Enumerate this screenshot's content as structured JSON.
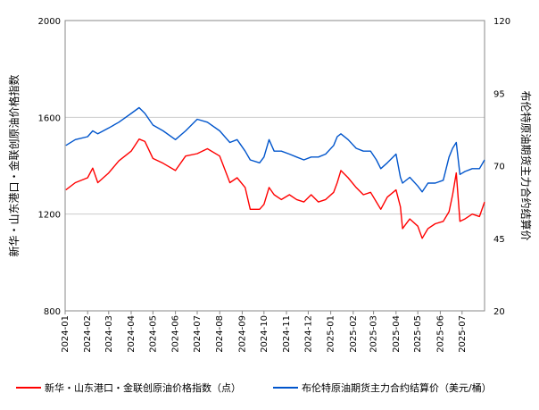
{
  "chart_data": {
    "type": "line",
    "title": "",
    "left_axis": {
      "label": "新华・山东港口・金联创原油价格指数",
      "ylim": [
        800,
        2000
      ],
      "ticks": [
        800,
        1200,
        1600,
        2000
      ]
    },
    "right_axis": {
      "label": "布伦特原油期货主力合约结算价",
      "ylim": [
        20,
        120
      ],
      "ticks": [
        20,
        45,
        70,
        95,
        120
      ]
    },
    "x_ticks": [
      "2024-01",
      "2024-02",
      "2024-03",
      "2024-04",
      "2024-05",
      "2024-06",
      "2024-07",
      "2024-08",
      "2024-09",
      "2024-10",
      "2024-11",
      "2024-12",
      "2025-01",
      "2025-02",
      "2025-03",
      "2025-04",
      "2025-05",
      "2025-06",
      "2025-07"
    ],
    "grid": "horizontal",
    "legend_position": "bottom",
    "series": [
      {
        "name": "新华・山东港口・金联创原油价格指数（点）",
        "color": "#ff0000",
        "axis": "left",
        "x": [
          "2024-01-02",
          "2024-01-15",
          "2024-02-01",
          "2024-02-08",
          "2024-02-15",
          "2024-03-01",
          "2024-03-15",
          "2024-04-01",
          "2024-04-12",
          "2024-04-20",
          "2024-05-01",
          "2024-05-15",
          "2024-06-01",
          "2024-06-15",
          "2024-07-01",
          "2024-07-15",
          "2024-08-01",
          "2024-08-15",
          "2024-08-25",
          "2024-09-05",
          "2024-09-12",
          "2024-09-25",
          "2024-10-01",
          "2024-10-08",
          "2024-10-15",
          "2024-10-25",
          "2024-11-05",
          "2024-11-15",
          "2024-11-25",
          "2024-12-05",
          "2024-12-15",
          "2024-12-25",
          "2025-01-05",
          "2025-01-10",
          "2025-01-15",
          "2025-01-25",
          "2025-02-05",
          "2025-02-15",
          "2025-02-25",
          "2025-03-05",
          "2025-03-11",
          "2025-03-20",
          "2025-04-01",
          "2025-04-07",
          "2025-04-10",
          "2025-04-20",
          "2025-05-01",
          "2025-05-07",
          "2025-05-15",
          "2025-05-25",
          "2025-06-05",
          "2025-06-13",
          "2025-06-18",
          "2025-06-23",
          "2025-06-28",
          "2025-07-05",
          "2025-07-15",
          "2025-07-25",
          "2025-08-01"
        ],
        "values": [
          1300,
          1330,
          1350,
          1390,
          1330,
          1370,
          1420,
          1460,
          1510,
          1500,
          1430,
          1410,
          1380,
          1440,
          1450,
          1470,
          1440,
          1330,
          1350,
          1310,
          1220,
          1220,
          1240,
          1310,
          1280,
          1260,
          1280,
          1260,
          1250,
          1280,
          1250,
          1260,
          1290,
          1330,
          1380,
          1350,
          1310,
          1280,
          1290,
          1250,
          1220,
          1270,
          1300,
          1230,
          1140,
          1180,
          1150,
          1100,
          1140,
          1160,
          1170,
          1210,
          1280,
          1370,
          1170,
          1180,
          1200,
          1190,
          1250
        ]
      },
      {
        "name": "布伦特原油期货主力合约结算价（美元/桶）",
        "color": "#0055cc",
        "axis": "right",
        "x": [
          "2024-01-02",
          "2024-01-15",
          "2024-02-01",
          "2024-02-08",
          "2024-02-15",
          "2024-03-01",
          "2024-03-15",
          "2024-04-01",
          "2024-04-12",
          "2024-04-20",
          "2024-05-01",
          "2024-05-15",
          "2024-06-01",
          "2024-06-15",
          "2024-07-01",
          "2024-07-15",
          "2024-08-01",
          "2024-08-15",
          "2024-08-25",
          "2024-09-05",
          "2024-09-12",
          "2024-09-25",
          "2024-10-01",
          "2024-10-08",
          "2024-10-15",
          "2024-10-25",
          "2024-11-05",
          "2024-11-15",
          "2024-11-25",
          "2024-12-05",
          "2024-12-15",
          "2024-12-25",
          "2025-01-05",
          "2025-01-10",
          "2025-01-15",
          "2025-01-25",
          "2025-02-05",
          "2025-02-15",
          "2025-02-25",
          "2025-03-05",
          "2025-03-11",
          "2025-03-20",
          "2025-04-01",
          "2025-04-07",
          "2025-04-10",
          "2025-04-20",
          "2025-05-01",
          "2025-05-07",
          "2025-05-15",
          "2025-05-25",
          "2025-06-05",
          "2025-06-13",
          "2025-06-18",
          "2025-06-23",
          "2025-06-28",
          "2025-07-05",
          "2025-07-15",
          "2025-07-25",
          "2025-08-01"
        ],
        "values": [
          77,
          79,
          80,
          82,
          81,
          83,
          85,
          88,
          90,
          88,
          84,
          82,
          79,
          82,
          86,
          85,
          82,
          78,
          79,
          75,
          72,
          71,
          73,
          79,
          75,
          75,
          74,
          73,
          72,
          73,
          73,
          74,
          77,
          80,
          81,
          79,
          76,
          75,
          75,
          72,
          69,
          71,
          74,
          66,
          64,
          66,
          63,
          61,
          64,
          64,
          65,
          73,
          76,
          78,
          67,
          68,
          69,
          69,
          72
        ]
      }
    ]
  }
}
